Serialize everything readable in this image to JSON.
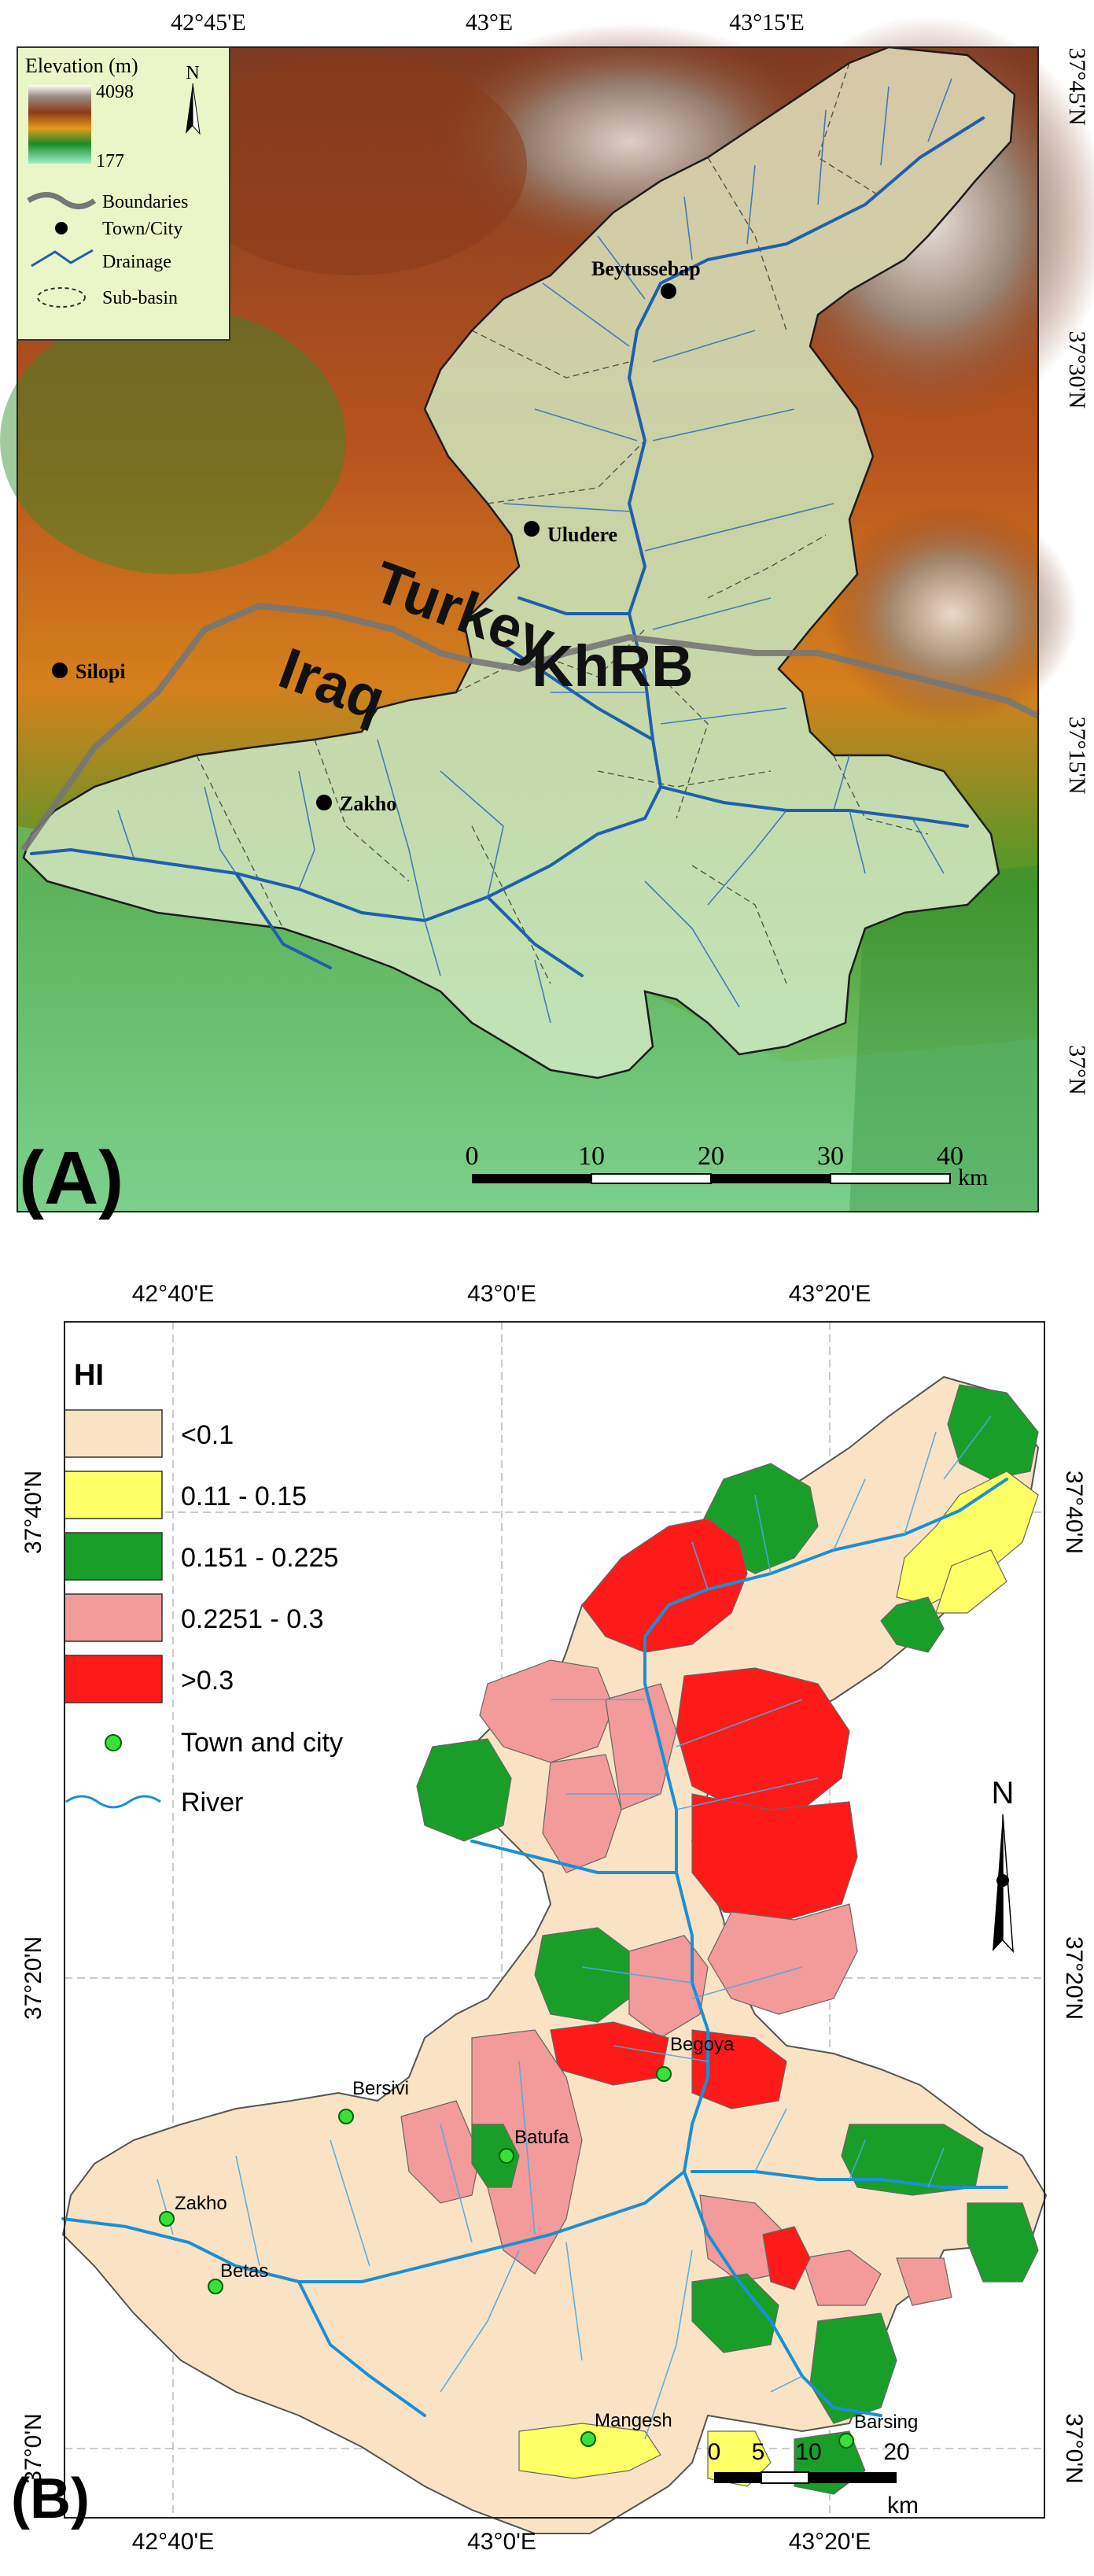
{
  "panel_a": {
    "label": "(A)",
    "top_ticks": [
      "42°45'E",
      "43°E",
      "43°15'E"
    ],
    "right_ticks": [
      "37°45'N",
      "37°30'N",
      "37°15'N",
      "37°N"
    ],
    "legend": {
      "title": "Elevation (m)",
      "max": "4098",
      "min": "177",
      "items": [
        "Boundaries",
        "Town/City",
        "Drainage",
        "Sub-basin"
      ]
    },
    "north": "N",
    "cities": [
      "Beytussebap",
      "Uludere",
      "Silopi",
      "Zakho"
    ],
    "labels": {
      "country1": "Turkey",
      "country2": "Iraq",
      "basin": "KhRB"
    },
    "scale": {
      "ticks": [
        "0",
        "10",
        "20",
        "30",
        "40"
      ],
      "unit": "km"
    }
  },
  "panel_b": {
    "label": "(B)",
    "top_ticks": [
      "42°40'E",
      "43°0'E",
      "43°20'E"
    ],
    "bottom_ticks": [
      "42°40'E",
      "43°0'E",
      "43°20'E"
    ],
    "left_ticks": [
      "37°40'N",
      "37°20'N",
      "37°0'N"
    ],
    "right_ticks": [
      "37°40'N",
      "37°20'N",
      "37°0'N"
    ],
    "legend": {
      "title": "HI",
      "classes": [
        {
          "label": "<0.1",
          "color": "#fae3c4"
        },
        {
          "label": "0.11 - 0.15",
          "color": "#ffff66"
        },
        {
          "label": "0.151 - 0.225",
          "color": "#1a9e2a"
        },
        {
          "label": "0.2251 - 0.3",
          "color": "#f39a9a"
        },
        {
          "label": ">0.3",
          "color": "#ff1a1a"
        }
      ],
      "town_label": "Town and city",
      "river_label": "River"
    },
    "north": "N",
    "towns": [
      "Begoya",
      "Bersivi",
      "Batufa",
      "Zakho",
      "Betas",
      "Mangesh",
      "Barsing"
    ],
    "scale": {
      "ticks": [
        "0",
        "5",
        "10",
        "20"
      ],
      "unit": "km"
    }
  }
}
